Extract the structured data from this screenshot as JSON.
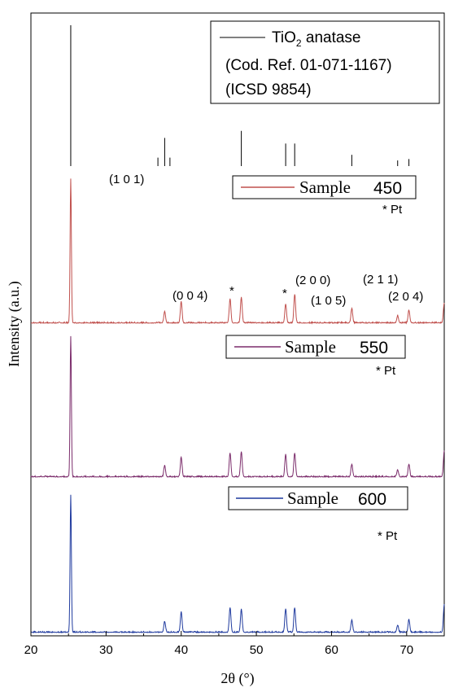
{
  "chart_data": {
    "type": "line",
    "xlabel": "2θ (°)",
    "ylabel": "Intensity (a.u.)",
    "xlim": [
      20,
      75
    ],
    "x_ticks": [
      "20",
      "30",
      "40",
      "50",
      "60",
      "70"
    ],
    "reference": {
      "label_main": "TiO",
      "label_sub": "2",
      "label_rest": " anatase",
      "line2": "(Cod. Ref. 01-071-1167)",
      "line3": "(ICSD 9854)",
      "color": "#000000",
      "lines": [
        {
          "x": 25.3,
          "h": 1.0
        },
        {
          "x": 36.9,
          "h": 0.06
        },
        {
          "x": 37.8,
          "h": 0.2
        },
        {
          "x": 38.5,
          "h": 0.06
        },
        {
          "x": 48.0,
          "h": 0.25
        },
        {
          "x": 53.9,
          "h": 0.16
        },
        {
          "x": 55.1,
          "h": 0.16
        },
        {
          "x": 62.7,
          "h": 0.08
        },
        {
          "x": 68.8,
          "h": 0.04
        },
        {
          "x": 70.3,
          "h": 0.05
        },
        {
          "x": 75.0,
          "h": 0.1
        }
      ]
    },
    "series": [
      {
        "name_word": "Sample",
        "name_num": "450",
        "color": "#c0504d",
        "pt_label": "* Pt",
        "peaks": [
          {
            "x": 25.3,
            "h": 1.0
          },
          {
            "x": 37.8,
            "h": 0.08
          },
          {
            "x": 40.0,
            "h": 0.15
          },
          {
            "x": 46.5,
            "h": 0.17
          },
          {
            "x": 48.0,
            "h": 0.18
          },
          {
            "x": 53.9,
            "h": 0.13
          },
          {
            "x": 55.1,
            "h": 0.2
          },
          {
            "x": 62.7,
            "h": 0.1
          },
          {
            "x": 68.8,
            "h": 0.05
          },
          {
            "x": 70.3,
            "h": 0.09
          },
          {
            "x": 75.0,
            "h": 0.14
          }
        ]
      },
      {
        "name_word": "Sample",
        "name_num": "550",
        "color": "#7b2c6b",
        "pt_label": "* Pt",
        "peaks": [
          {
            "x": 25.3,
            "h": 1.0
          },
          {
            "x": 37.8,
            "h": 0.08
          },
          {
            "x": 40.0,
            "h": 0.14
          },
          {
            "x": 46.5,
            "h": 0.17
          },
          {
            "x": 48.0,
            "h": 0.18
          },
          {
            "x": 53.9,
            "h": 0.16
          },
          {
            "x": 55.1,
            "h": 0.17
          },
          {
            "x": 62.7,
            "h": 0.09
          },
          {
            "x": 68.8,
            "h": 0.05
          },
          {
            "x": 70.3,
            "h": 0.09
          },
          {
            "x": 75.0,
            "h": 0.18
          }
        ]
      },
      {
        "name_word": "Sample",
        "name_num": "600",
        "color": "#1f3a9e",
        "pt_label": "* Pt",
        "peaks": [
          {
            "x": 25.3,
            "h": 1.0
          },
          {
            "x": 37.8,
            "h": 0.08
          },
          {
            "x": 40.0,
            "h": 0.15
          },
          {
            "x": 46.5,
            "h": 0.18
          },
          {
            "x": 48.0,
            "h": 0.17
          },
          {
            "x": 53.9,
            "h": 0.17
          },
          {
            "x": 55.1,
            "h": 0.18
          },
          {
            "x": 62.7,
            "h": 0.09
          },
          {
            "x": 68.8,
            "h": 0.05
          },
          {
            "x": 70.3,
            "h": 0.09
          },
          {
            "x": 75.0,
            "h": 0.2
          }
        ]
      }
    ],
    "annotations": [
      {
        "text": "(1 0 1)"
      },
      {
        "text": "(0 0 4)"
      },
      {
        "text": "*"
      },
      {
        "text": "*"
      },
      {
        "text": "(2 0 0)"
      },
      {
        "text": "(1 0 5)"
      },
      {
        "text": "(2 1 1)"
      },
      {
        "text": "(2 0 4)"
      }
    ]
  }
}
